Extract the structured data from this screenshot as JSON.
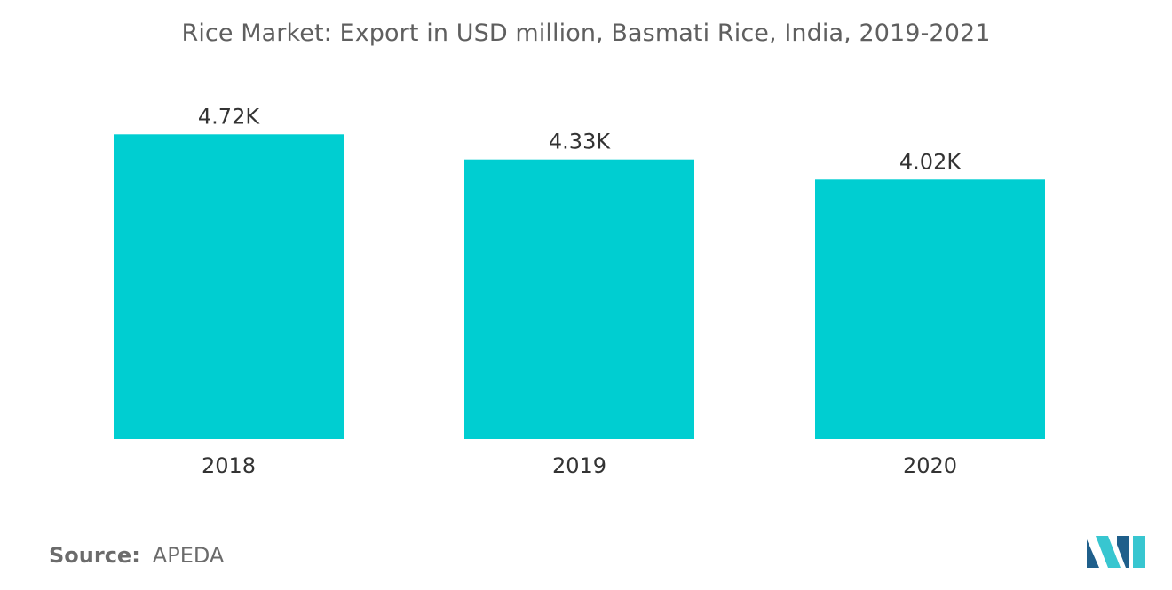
{
  "chart_data": {
    "type": "bar",
    "title": "Rice Market: Export in USD million, Basmati Rice, India, 2019-2021",
    "categories": [
      "2018",
      "2019",
      "2020"
    ],
    "values": [
      4720,
      4330,
      4020
    ],
    "data_labels": [
      "4.72K",
      "4.33K",
      "4.02K"
    ],
    "xlabel": "",
    "ylabel": "",
    "ylim": [
      0,
      5150
    ],
    "grid": false,
    "legend": "none",
    "bar_color": "#00ced1"
  },
  "source": {
    "label": "Source:",
    "value": "APEDA"
  },
  "colors": {
    "title_text": "#5f5f5f",
    "label_text": "#333333",
    "logo_dark": "#1f5f8b",
    "logo_light": "#38c6d0"
  },
  "logo": {
    "icon": "mordor-intelligence-logo-icon"
  }
}
